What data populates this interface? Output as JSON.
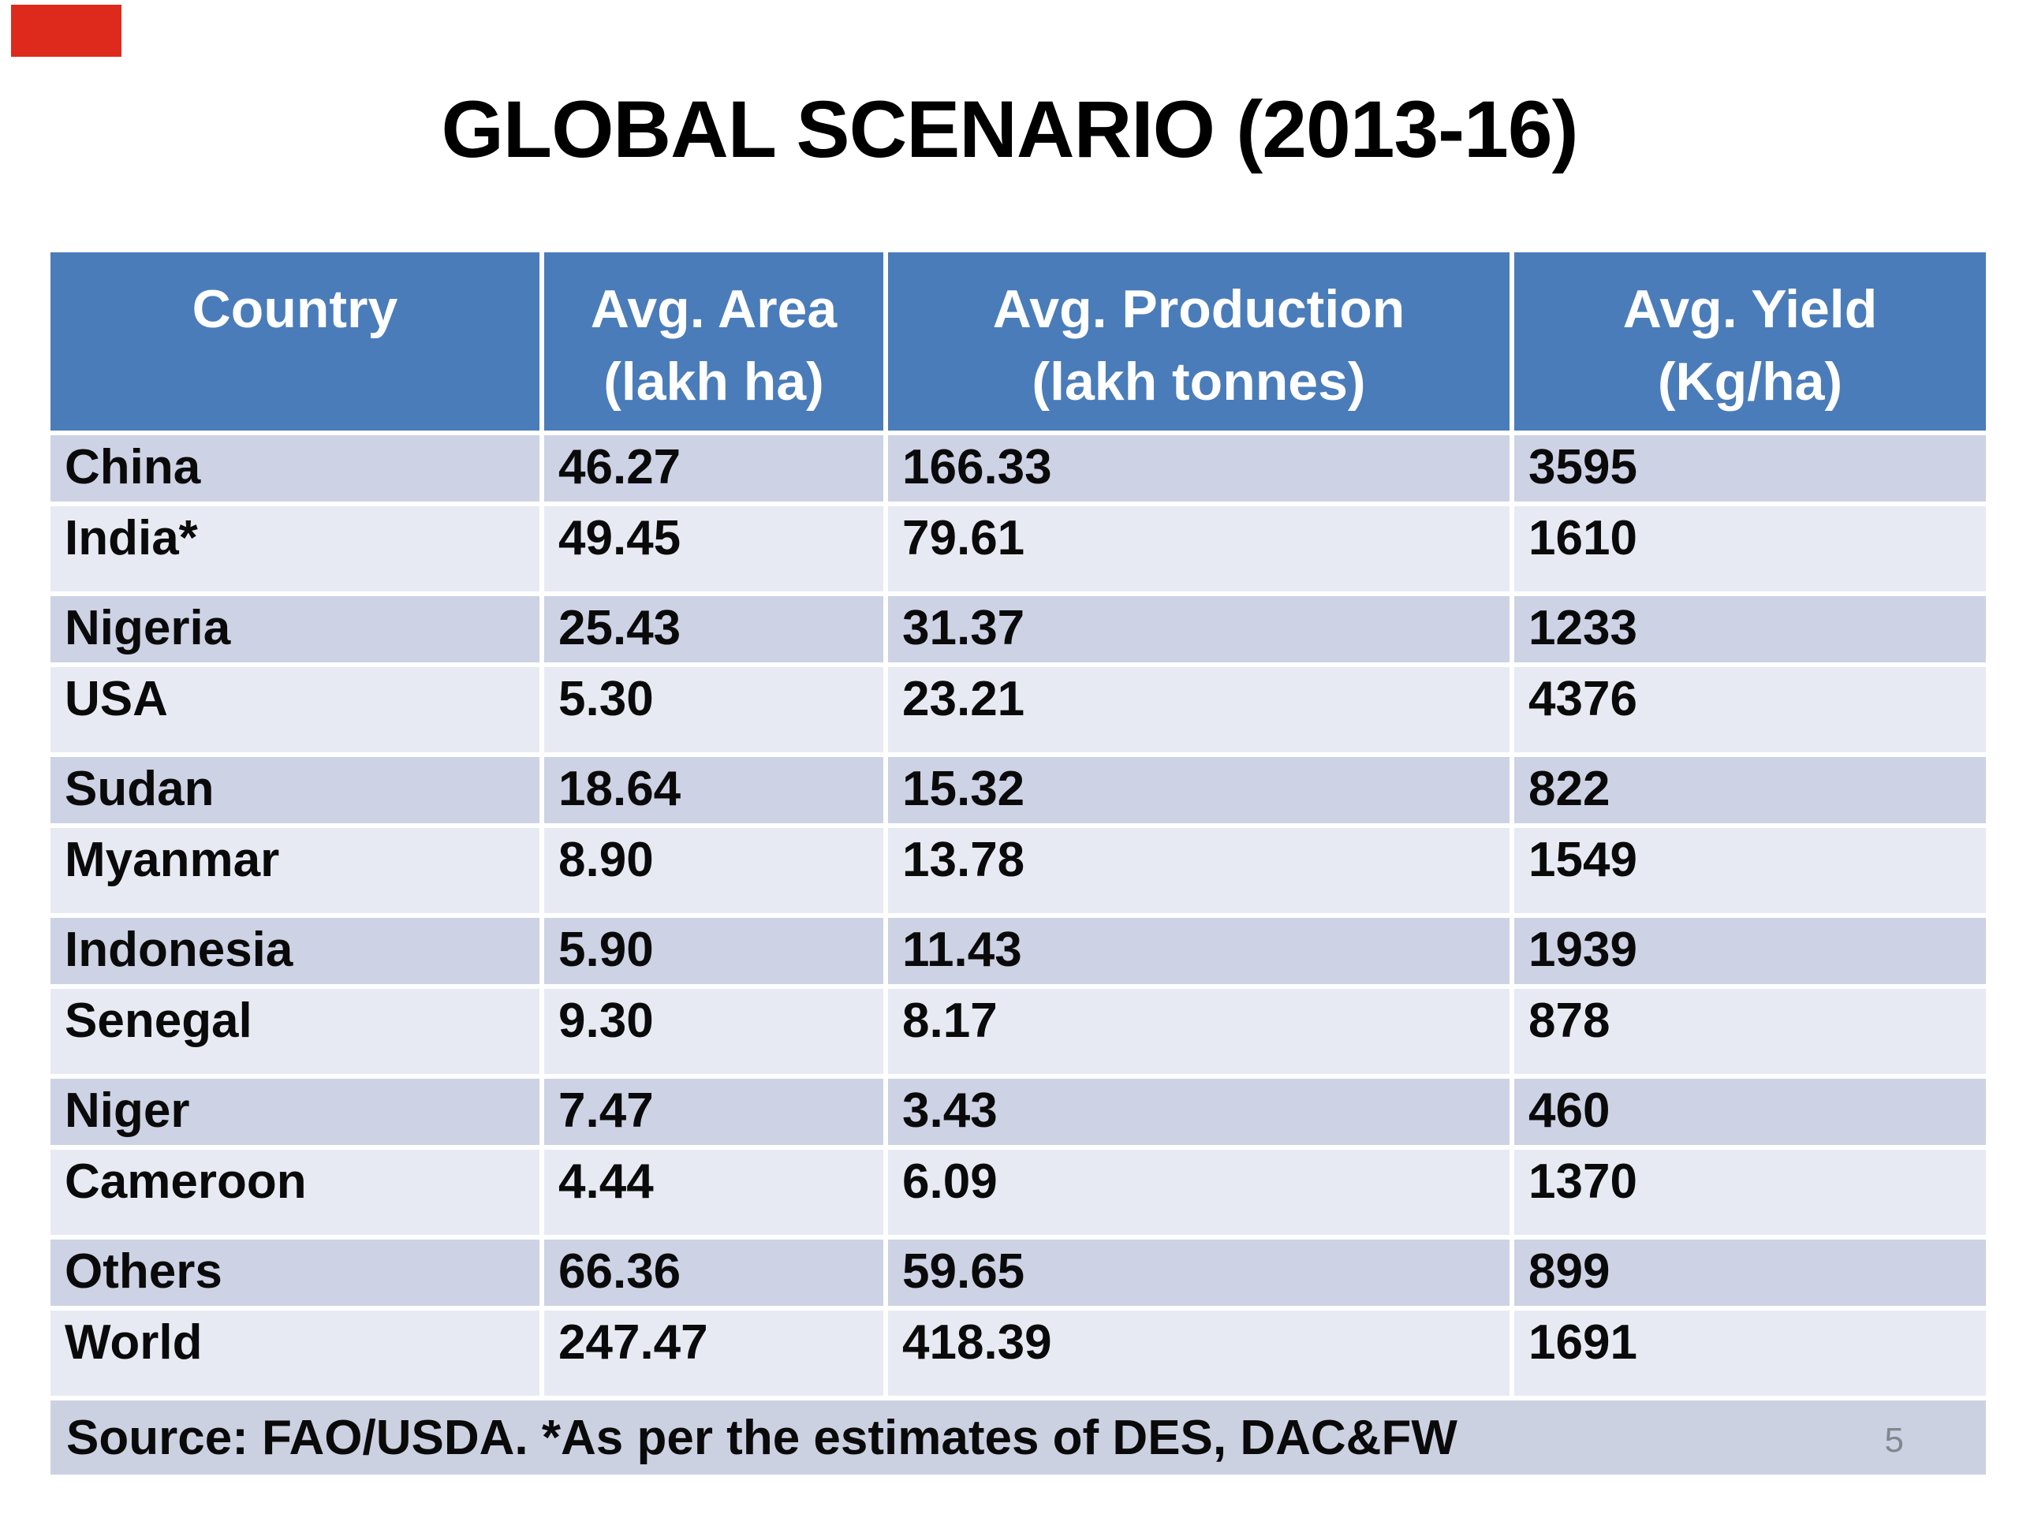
{
  "page": {
    "title": "GLOBAL SCENARIO (2013-16)",
    "page_number": "5"
  },
  "colors": {
    "header_bg": "#4a7cba",
    "header_text": "#ffffff",
    "row_dark": "#cdd2e4",
    "row_light": "#e8eaf3",
    "footer_bg": "#ccd1e2",
    "body_text": "#0a0a0a",
    "page_number_text": "#82868f",
    "red_marker": "#de291d",
    "title_text": "#000000"
  },
  "table": {
    "columns": [
      {
        "line1": "Country",
        "line2": ""
      },
      {
        "line1": "Avg. Area",
        "line2": "(lakh ha)"
      },
      {
        "line1": "Avg. Production",
        "line2": "(lakh tonnes)"
      },
      {
        "line1": "Avg. Yield",
        "line2": "(Kg/ha)"
      }
    ],
    "rows": [
      {
        "country": "China",
        "area": "46.27",
        "production": "166.33",
        "yield": "3595"
      },
      {
        "country": "India*",
        "area": "49.45",
        "production": "79.61",
        "yield": "1610"
      },
      {
        "country": "Nigeria",
        "area": "25.43",
        "production": "31.37",
        "yield": "1233"
      },
      {
        "country": "USA",
        "area": "5.30",
        "production": "23.21",
        "yield": "4376"
      },
      {
        "country": "Sudan",
        "area": "18.64",
        "production": "15.32",
        "yield": "822"
      },
      {
        "country": "Myanmar",
        "area": "8.90",
        "production": "13.78",
        "yield": "1549"
      },
      {
        "country": "Indonesia",
        "area": "5.90",
        "production": "11.43",
        "yield": "1939"
      },
      {
        "country": "Senegal",
        "area": "9.30",
        "production": "8.17",
        "yield": "878"
      },
      {
        "country": "Niger",
        "area": "7.47",
        "production": "3.43",
        "yield": "460"
      },
      {
        "country": "Cameroon",
        "area": "4.44",
        "production": "6.09",
        "yield": "1370"
      },
      {
        "country": "Others",
        "area": "66.36",
        "production": "59.65",
        "yield": "899"
      },
      {
        "country": "World",
        "area": "247.47",
        "production": "418.39",
        "yield": "1691"
      }
    ],
    "footer": "Source: FAO/USDA. *As per the estimates of DES, DAC&FW"
  }
}
